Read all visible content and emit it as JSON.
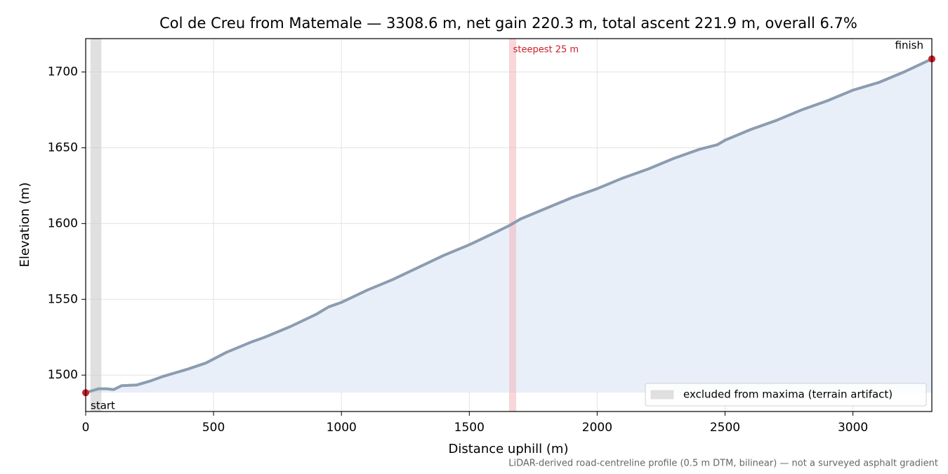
{
  "chart_data": {
    "type": "line",
    "title": "Col de Creu from Matemale — 3308.6 m, net gain 220.3 m, total ascent 221.9 m, overall 6.7%",
    "xlabel": "Distance uphill (m)",
    "ylabel": "Elevation (m)",
    "note": "LiDAR-derived road-centreline profile (0.5 m DTM, bilinear) — not a surveyed asphalt gradient",
    "x": [
      0,
      50,
      80,
      110,
      140,
      200,
      250,
      300,
      400,
      470,
      550,
      650,
      700,
      800,
      900,
      950,
      1000,
      1100,
      1200,
      1300,
      1400,
      1500,
      1600,
      1660,
      1700,
      1800,
      1900,
      2000,
      2100,
      2200,
      2300,
      2400,
      2470,
      2500,
      2600,
      2700,
      2800,
      2900,
      3000,
      3100,
      3200,
      3308.6
    ],
    "values": [
      1488.4,
      1491,
      1491,
      1490.5,
      1493,
      1493.5,
      1496,
      1499,
      1504,
      1508,
      1515,
      1522,
      1525,
      1532,
      1540,
      1545,
      1548,
      1556,
      1563,
      1571,
      1579,
      1586,
      1594,
      1599,
      1603,
      1610,
      1617,
      1623,
      1630,
      1636,
      1643,
      1649,
      1652,
      1655,
      1662,
      1668,
      1675,
      1681,
      1688,
      1693,
      1700,
      1708.6
    ],
    "color": "#8c9cb0",
    "fill_color": "#e9eff9",
    "endpoint_color": "#cc1f2a",
    "start_label": "start",
    "finish_label": "finish",
    "spans": [
      {
        "label": "excluded from maxima (terrain artifact)",
        "xlim": [
          20,
          60
        ],
        "color": "#c8c8c8",
        "in_legend": true
      },
      {
        "label": "steepest 25 m",
        "xlim": [
          1657,
          1682
        ],
        "color": "#f4b6bb",
        "in_legend": false
      }
    ],
    "xlim": [
      0,
      3308.6
    ],
    "ylim": [
      1476,
      1722
    ],
    "xticks": [
      0,
      500,
      1000,
      1500,
      2000,
      2500,
      3000
    ],
    "yticks": [
      1500,
      1550,
      1600,
      1650,
      1700
    ],
    "grid": true,
    "legend_position": "lower right"
  }
}
